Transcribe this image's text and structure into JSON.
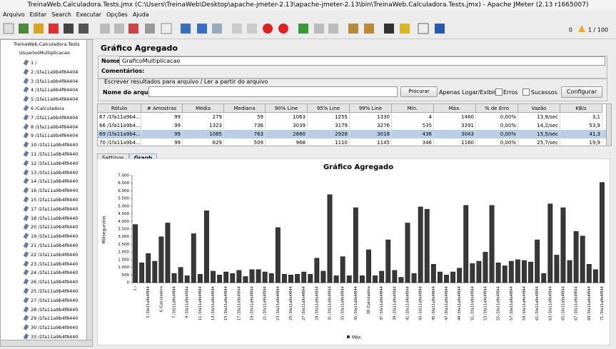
{
  "window": {
    "title": "TreinaWeb.Calculadora.Tests.jmx (C:\\Users\\TreinaWeb\\Desktop\\apache-jmeter-2.13\\apache-jmeter-2.13\\bin\\TreinaWeb.Calculadora.Tests.jmx) - Apache JMeter (2.13 r1665007)"
  },
  "menu": [
    "Arquivo",
    "Editar",
    "Search",
    "Executar",
    "Opções",
    "Ajuda"
  ],
  "toolbar": {
    "warnings": "0",
    "threads": "1 / 100"
  },
  "tree": {
    "root": "TreinaWeb.Calculadora.Tests",
    "group": "UsuariosMultiplicacao",
    "items": [
      "1 /",
      "2 /1fa11a9b4f84404",
      "3 /1fa11a9b4f84404",
      "4 /1fa11a9b4f84404",
      "5 /1fa11a9b4f84404",
      "6 /Calculadora",
      "7 /1fa11a9b4f84404",
      "8 /1fa11a9b4f84404",
      "9 /1fa11a9b4f84404",
      "10 /1fa11a9b4f8440",
      "11 /1fa11a9b4f8440",
      "12 /1fa11a9b4f8440",
      "13 /1fa11a9b4f8440",
      "14 /1fa11a9b4f8440",
      "16 /1fa11a9b4f8440",
      "15 /1fa11a9b4f8440",
      "17 /1fa11a9b4f8440",
      "18 /1fa11a9b4f8440",
      "20 /1fa11a9b4f8440",
      "19 /1fa11a9b4f8440",
      "21 /1fa11a9b4f8440",
      "22 /1fa11a9b4f8440",
      "23 /1fa11a9b4f8440",
      "24 /1fa11a9b4f8440",
      "26 /1fa11a9b4f8440",
      "25 /1fa11a9b4f8440",
      "27 /1fa11a9b4f8440",
      "28 /1fa11a9b4f8440",
      "29 /1fa11a9b4f8440",
      "30 /1fa11a9b4f8440",
      "33 /1fa11a9b4f8440"
    ]
  },
  "panel": {
    "title": "Gráfico Agregado",
    "name_label": "Nome:",
    "name_value": "GraficoMultiplicacao",
    "comments_label": "Comentários:",
    "file_section": "Escrever resultados para arquivo / Ler a partir do arquivo",
    "file_label": "Nome do arquivo",
    "browse": "Procurar",
    "log_only": "Apenas Logar/Exibir",
    "errors": "Erros",
    "successes": "Sucessos",
    "configure": "Configurar"
  },
  "table": {
    "headers": [
      "Rótulo",
      "# Amostras",
      "Média",
      "Mediana",
      "90% Line",
      "95% Line",
      "99% Line",
      "Mín.",
      "Máx.",
      "% de Erro",
      "Vazão",
      "KB/s"
    ],
    "rows": [
      [
        "67 /1fa11a9b4...",
        "99",
        "279",
        "59",
        "1063",
        "1255",
        "1330",
        "4",
        "1460",
        "0,00%",
        "13,9/sec",
        "3,1"
      ],
      [
        "66 /1fa11a9b4...",
        "99",
        "1323",
        "736",
        "3039",
        "3179",
        "3276",
        "535",
        "3391",
        "0,00%",
        "14,2/sec",
        "53,9"
      ],
      [
        "69 /1fa11a9b4...",
        "99",
        "1085",
        "763",
        "2880",
        "2928",
        "3018",
        "436",
        "3043",
        "0,00%",
        "15,5/sec",
        "41,3"
      ],
      [
        "70 /1fa11a9b4...",
        "99",
        "629",
        "509",
        "968",
        "1110",
        "1145",
        "346",
        "1160",
        "0,00%",
        "25,7/sec",
        "19,9"
      ]
    ]
  },
  "tabs": [
    "Settings",
    "Graph"
  ],
  "chart_data": {
    "type": "bar",
    "title": "Gráfico Agregado",
    "y_label": "Milisegundos",
    "categories": [
      "1 /",
      null,
      "3 /1fa11a9b4f844",
      null,
      "6 /Calculadora",
      null,
      "7 /1fa11a9b4f844",
      null,
      "9 /1fa11a9b4f844",
      null,
      "11 /1fa11a9b4f844",
      null,
      "13 /1fa11a9b4f844",
      null,
      "15 /1fa11a9b4f844",
      null,
      "17 /1fa11a9b4f844",
      null,
      "19 /1fa11a9b4f844",
      null,
      "21 /1fa11a9b4f844",
      null,
      "23 /1fa11a9b4f844",
      null,
      "25 /1fa11a9b4f844",
      null,
      "27 /1fa11a9b4f844",
      null,
      "29 /1fa11a9b4f844",
      null,
      "31 /1fa11a9b4f844",
      null,
      "33 /1fa11a9b4f844",
      null,
      "35 /1fa11a9b4f844",
      null,
      "38 /Calculadora",
      null,
      "37 /1fa11a9b4f844",
      null,
      "39 /1fa11a9b4f844",
      null,
      "41 /1fa11a9b4f844",
      null,
      "43 /1fa11a9b4f844",
      null,
      "45 /1fa11a9b4f844",
      null,
      "47 /1fa11a9b4f844",
      null,
      "49 /1fa11a9b4f844",
      null,
      "51 /1fa11a9b4f844",
      null,
      "53 /1fa11a9b4f844",
      null,
      "55 /1fa11a9b4f844",
      null,
      "57 /1fa11a9b4f844",
      null,
      "59 /1fa11a9b4f844",
      null,
      "61 /1fa11a9b4f844",
      null,
      "63 /1fa11a9b4f844",
      null,
      "65 /1fa11a9b4f844",
      null,
      "67 /1fa11a9b4f844",
      null,
      "69 /1fa11a9b4f844",
      null,
      "71 /1fa11a9b4f844"
    ],
    "series": [
      {
        "name": "Máx.",
        "color": "#383838",
        "values": [
          3800,
          1300,
          1900,
          1400,
          3000,
          3900,
          600,
          1000,
          450,
          3200,
          550,
          4700,
          750,
          500,
          700,
          600,
          800,
          400,
          850,
          850,
          700,
          600,
          3600,
          550,
          500,
          550,
          700,
          550,
          1600,
          750,
          5750,
          450,
          1700,
          450,
          4900,
          450,
          2150,
          450,
          750,
          2800,
          800,
          350,
          3900,
          600,
          4950,
          4800,
          1200,
          700,
          500,
          700,
          950,
          5050,
          1250,
          1400,
          2000,
          5050,
          1300,
          1100,
          1400,
          1500,
          1450,
          1350,
          2800,
          600,
          5150,
          1800,
          4900,
          1450,
          3350,
          3050,
          1200,
          850,
          6550
        ]
      }
    ],
    "ylim": [
      0,
      7000
    ],
    "yticks": [
      0,
      500,
      {
        "value": 1000,
        "label": "1.000"
      },
      {
        "value": 1500,
        "label": "1.500"
      },
      {
        "value": 2000,
        "label": "2.000"
      },
      {
        "value": 2500,
        "label": "2.500"
      },
      {
        "value": 3000,
        "label": "3.000"
      },
      {
        "value": 3500,
        "label": "3.500"
      },
      {
        "value": 4000,
        "label": "4.000"
      },
      {
        "value": 4500,
        "label": "4.500"
      },
      {
        "value": 5000,
        "label": "5.000"
      },
      {
        "value": 5500,
        "label": "5.500"
      },
      {
        "value": 6000,
        "label": "6.000"
      },
      {
        "value": 6500,
        "label": "6.500"
      },
      {
        "value": 7000,
        "label": "7.000"
      }
    ],
    "grid": false
  }
}
